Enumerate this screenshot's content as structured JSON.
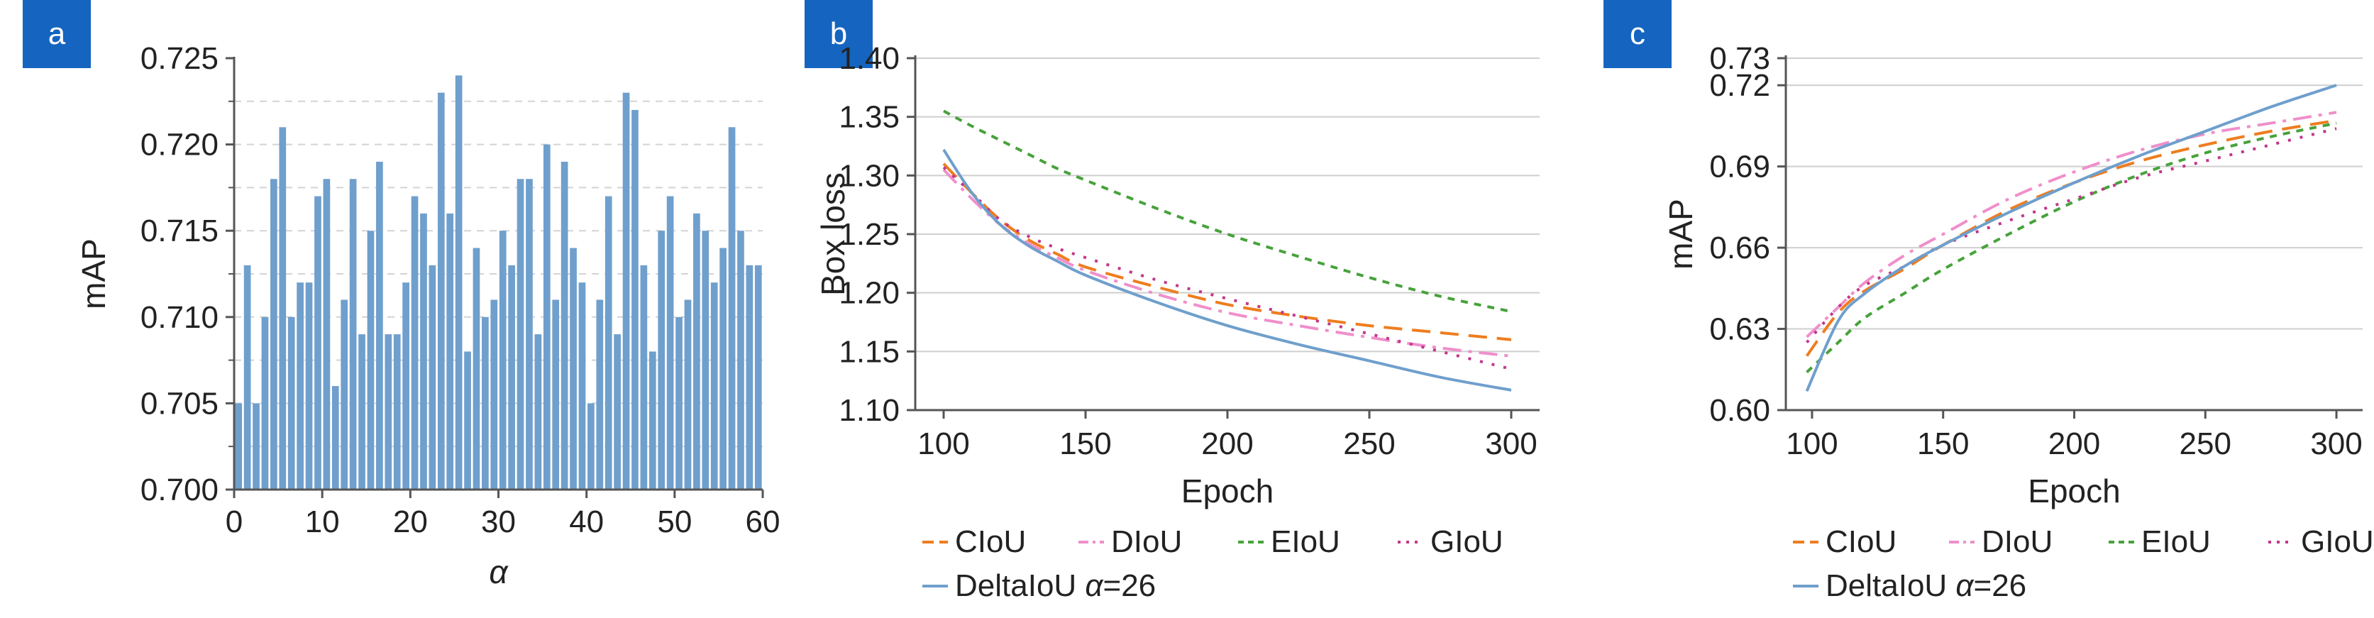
{
  "panels": {
    "a": {
      "tag": "a"
    },
    "b": {
      "tag": "b"
    },
    "c": {
      "tag": "c"
    }
  },
  "chart_data": [
    {
      "type": "bar",
      "xlabel": "α",
      "ylabel": "mAP",
      "xlim": [
        0,
        60
      ],
      "ylim": [
        0.7,
        0.725
      ],
      "xticks": [
        "0",
        "10",
        "20",
        "30",
        "40",
        "50",
        "60"
      ],
      "yticks": [
        "0.700",
        "0.705",
        "0.710",
        "0.715",
        "0.720",
        "0.725"
      ],
      "grid": "dashed horizontal",
      "color": "#6f9fcc",
      "x": [
        1,
        2,
        3,
        4,
        5,
        6,
        7,
        8,
        9,
        10,
        11,
        12,
        13,
        14,
        15,
        16,
        17,
        18,
        19,
        20,
        21,
        22,
        23,
        24,
        25,
        26,
        27,
        28,
        29,
        30,
        31,
        32,
        33,
        34,
        35,
        36,
        37,
        38,
        39,
        40,
        41,
        42,
        43,
        44,
        45,
        46,
        47,
        48,
        49,
        50,
        51,
        52,
        53,
        54,
        55,
        56,
        57,
        58,
        59,
        60
      ],
      "values": [
        0.705,
        0.713,
        0.705,
        0.71,
        0.718,
        0.721,
        0.71,
        0.712,
        0.712,
        0.717,
        0.718,
        0.706,
        0.711,
        0.718,
        0.709,
        0.715,
        0.719,
        0.709,
        0.709,
        0.712,
        0.717,
        0.716,
        0.713,
        0.723,
        0.716,
        0.724,
        0.708,
        0.714,
        0.71,
        0.711,
        0.715,
        0.713,
        0.718,
        0.718,
        0.709,
        0.72,
        0.711,
        0.719,
        0.714,
        0.712,
        0.705,
        0.711,
        0.717,
        0.709,
        0.723,
        0.722,
        0.713,
        0.708,
        0.715,
        0.717,
        0.71,
        0.711,
        0.716,
        0.715,
        0.712,
        0.714,
        0.721,
        0.715,
        0.713,
        0.713
      ]
    },
    {
      "type": "line",
      "xlabel": "Epoch",
      "ylabel": "Box loss",
      "xlim": [
        90,
        310
      ],
      "ylim": [
        1.1,
        1.4
      ],
      "xticks": [
        "100",
        "150",
        "200",
        "250",
        "300"
      ],
      "yticks": [
        "1.10",
        "1.15",
        "1.20",
        "1.25",
        "1.30",
        "1.35",
        "1.40"
      ],
      "grid": "horizontal",
      "x": [
        100,
        110,
        120,
        130,
        140,
        150,
        175,
        200,
        225,
        250,
        275,
        300
      ],
      "series": [
        {
          "name": "CIoU",
          "color": "#ee7d1f",
          "dash": "26,14",
          "values": [
            1.31,
            1.285,
            1.262,
            1.245,
            1.233,
            1.222,
            1.205,
            1.19,
            1.18,
            1.172,
            1.166,
            1.16
          ]
        },
        {
          "name": "DIoU",
          "color": "#ef8fcb",
          "dash": "26,10,5,10",
          "values": [
            1.305,
            1.28,
            1.258,
            1.242,
            1.23,
            1.219,
            1.199,
            1.183,
            1.172,
            1.162,
            1.153,
            1.146
          ]
        },
        {
          "name": "EIoU",
          "color": "#47a23b",
          "dash": "10,9",
          "values": [
            1.355,
            1.342,
            1.33,
            1.318,
            1.306,
            1.296,
            1.272,
            1.25,
            1.231,
            1.213,
            1.197,
            1.184
          ]
        },
        {
          "name": "GIoU",
          "color": "#c2378b",
          "dash": "4,13",
          "values": [
            1.307,
            1.285,
            1.262,
            1.248,
            1.238,
            1.23,
            1.211,
            1.195,
            1.18,
            1.165,
            1.15,
            1.135
          ]
        },
        {
          "name": "DeltaIoU",
          "color": "#6f9fcc",
          "dash": "",
          "values": [
            1.322,
            1.285,
            1.258,
            1.24,
            1.227,
            1.215,
            1.192,
            1.172,
            1.156,
            1.142,
            1.128,
            1.117
          ]
        }
      ],
      "legend": [
        {
          "label": "CIoU",
          "color": "#ee7d1f",
          "dash": "26,14"
        },
        {
          "label": "DIoU",
          "color": "#ef8fcb",
          "dash": "26,10,5,10"
        },
        {
          "label": "EIoU",
          "color": "#47a23b",
          "dash": "10,9"
        },
        {
          "label": "GIoU",
          "color": "#c2378b",
          "dash": "4,13"
        },
        {
          "label": "DeltaIoU ",
          "label_italic": "α",
          "label_suffix": "=26",
          "color": "#6f9fcc",
          "dash": ""
        }
      ]
    },
    {
      "type": "line",
      "xlabel": "Epoch",
      "ylabel": "mAP",
      "xlim": [
        90,
        310
      ],
      "ylim": [
        0.6,
        0.73
      ],
      "xticks": [
        "100",
        "150",
        "200",
        "250",
        "300"
      ],
      "yticks": [
        "0.60",
        "0.63",
        "0.66",
        "0.69",
        "0.72",
        "0.73"
      ],
      "grid": "horizontal",
      "x": [
        98,
        110,
        120,
        135,
        150,
        175,
        200,
        225,
        250,
        275,
        300
      ],
      "series": [
        {
          "name": "CIoU",
          "color": "#ee7d1f",
          "dash": "26,14",
          "values": [
            0.62,
            0.636,
            0.644,
            0.652,
            0.661,
            0.674,
            0.684,
            0.692,
            0.698,
            0.703,
            0.707
          ]
        },
        {
          "name": "DIoU",
          "color": "#ef8fcb",
          "dash": "26,10,5,10",
          "values": [
            0.627,
            0.638,
            0.647,
            0.657,
            0.665,
            0.678,
            0.688,
            0.696,
            0.702,
            0.706,
            0.71
          ]
        },
        {
          "name": "EIoU",
          "color": "#47a23b",
          "dash": "10,9",
          "values": [
            0.614,
            0.625,
            0.634,
            0.643,
            0.652,
            0.665,
            0.677,
            0.687,
            0.695,
            0.701,
            0.706
          ]
        },
        {
          "name": "GIoU",
          "color": "#c2378b",
          "dash": "4,13",
          "values": [
            0.625,
            0.638,
            0.646,
            0.653,
            0.661,
            0.67,
            0.678,
            0.686,
            0.692,
            0.698,
            0.704
          ]
        },
        {
          "name": "DeltaIoU",
          "color": "#6f9fcc",
          "dash": "",
          "values": [
            0.607,
            0.633,
            0.643,
            0.653,
            0.661,
            0.673,
            0.684,
            0.694,
            0.703,
            0.712,
            0.72
          ]
        }
      ],
      "legend": [
        {
          "label": "CIoU",
          "color": "#ee7d1f",
          "dash": "26,14"
        },
        {
          "label": "DIoU",
          "color": "#ef8fcb",
          "dash": "26,10,5,10"
        },
        {
          "label": "EIoU",
          "color": "#47a23b",
          "dash": "10,9"
        },
        {
          "label": "GIoU",
          "color": "#c2378b",
          "dash": "4,13"
        },
        {
          "label": "DeltaIoU ",
          "label_italic": "α",
          "label_suffix": "=26",
          "color": "#6f9fcc",
          "dash": ""
        }
      ]
    }
  ]
}
